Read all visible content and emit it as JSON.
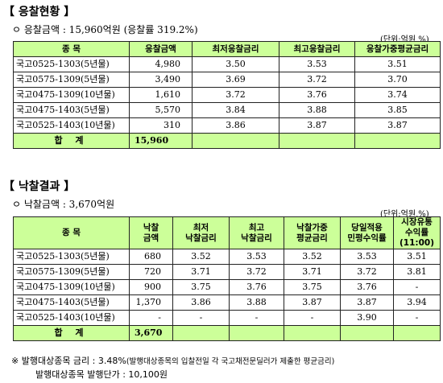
{
  "section1": {
    "title": "응찰현황",
    "summary": "ㅇ 응찰금액 : 15,960억원 (응찰률 319.2%)",
    "unit": "(단위:억원,%)",
    "headers": [
      "종 목",
      "응찰금액",
      "최저응찰금리",
      "최고응찰금리",
      "응찰가중평균금리"
    ],
    "rows": [
      [
        "국고0525-1303(5년물)",
        "4,980",
        "3.50",
        "3.53",
        "3.51"
      ],
      [
        "국고0575-1309(5년물)",
        "3,490",
        "3.69",
        "3.72",
        "3.70"
      ],
      [
        "국고0475-1309(10년물)",
        "1,610",
        "3.72",
        "3.76",
        "3.74"
      ],
      [
        "국고0475-1403(5년물)",
        "5,570",
        "3.84",
        "3.88",
        "3.85"
      ],
      [
        "국고0525-1403(10년물)",
        "310",
        "3.86",
        "3.87",
        "3.87"
      ]
    ],
    "total_label": "합 계",
    "total_value": "15,960"
  },
  "section2": {
    "title": "낙찰결과",
    "summary": "ㅇ 낙찰금액 : 3,670억원",
    "unit": "(단위:억원,%)",
    "headers": [
      [
        "종 목"
      ],
      [
        "낙찰",
        "금액"
      ],
      [
        "최저",
        "낙찰금리"
      ],
      [
        "최고",
        "낙찰금리"
      ],
      [
        "낙찰가중",
        "평균금리"
      ],
      [
        "당일적용",
        "민평수익률"
      ],
      [
        "시장유통",
        "수익률",
        "(11:00)"
      ]
    ],
    "rows": [
      [
        "국고0525-1303(5년물)",
        "680",
        "3.52",
        "3.53",
        "3.52",
        "3.53",
        "3.51"
      ],
      [
        "국고0575-1309(5년물)",
        "720",
        "3.71",
        "3.72",
        "3.71",
        "3.72",
        "3.81"
      ],
      [
        "국고0475-1309(10년물)",
        "900",
        "3.75",
        "3.76",
        "3.75",
        "3.76",
        "-"
      ],
      [
        "국고0475-1403(5년물)",
        "1,370",
        "3.86",
        "3.88",
        "3.87",
        "3.87",
        "3.94"
      ],
      [
        "국고0525-1403(10년물)",
        "-",
        "-",
        "-",
        "-",
        "3.90",
        "-"
      ]
    ],
    "total_label": "합 계",
    "total_value": "3,670"
  },
  "notes": {
    "line1_main": "※ 발행대상종목 금리 : 3.48%",
    "line1_small": "(발행대상종목의 입찰전일 각 국고채전문딜러가 제출한 평균금리)",
    "line2": "발행대상종목 발행단가 : 10,100원"
  },
  "colors": {
    "header_bg": "#CCFF99",
    "border": "#222222"
  }
}
